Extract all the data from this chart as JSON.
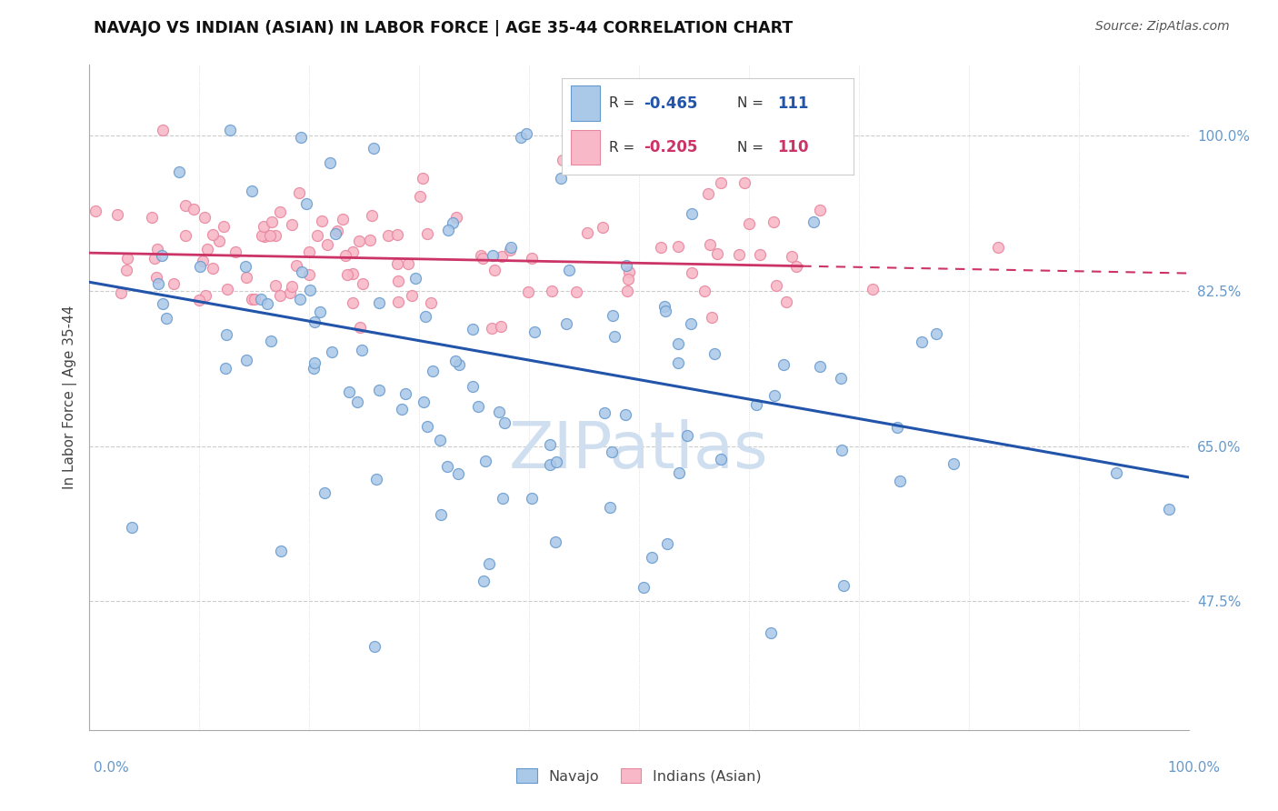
{
  "title": "NAVAJO VS INDIAN (ASIAN) IN LABOR FORCE | AGE 35-44 CORRELATION CHART",
  "source": "Source: ZipAtlas.com",
  "ylabel": "In Labor Force | Age 35-44",
  "yticks": [
    "47.5%",
    "65.0%",
    "82.5%",
    "100.0%"
  ],
  "ytick_values": [
    0.475,
    0.65,
    0.825,
    1.0
  ],
  "xrange": [
    0.0,
    1.0
  ],
  "yrange": [
    0.33,
    1.08
  ],
  "navajo_color": "#aac8e8",
  "navajo_edge": "#6699cc",
  "indian_color": "#f8b8c8",
  "indian_edge": "#e888a0",
  "trend_navajo_color": "#2255aa",
  "trend_indian_color": "#cc3366",
  "watermark_color": "#d0dff0",
  "navajo_label": "Navajo",
  "indian_label": "Indians (Asian)",
  "background_color": "#ffffff",
  "grid_color": "#cccccc",
  "navajo_trend_start_y": 0.835,
  "navajo_trend_end_y": 0.615,
  "indian_trend_start_y": 0.868,
  "indian_trend_end_y": 0.845
}
